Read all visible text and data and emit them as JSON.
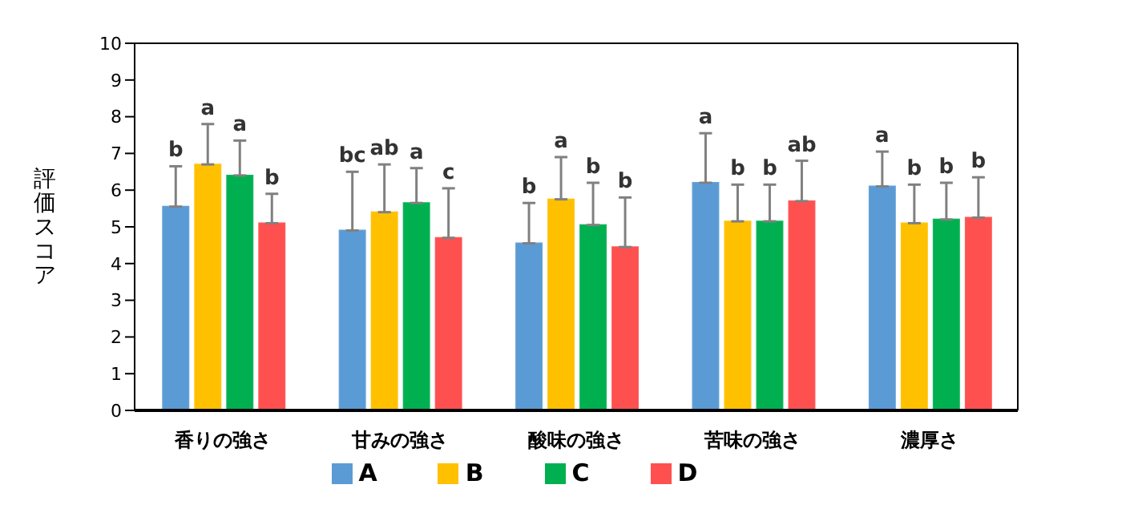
{
  "chart_data": {
    "type": "bar",
    "ylabel": "評価スコア",
    "categories": [
      "香りの強さ",
      "甘みの強さ",
      "酸味の強さ",
      "苦味の強さ",
      "濃厚さ"
    ],
    "series": [
      {
        "name": "A",
        "color": "#5b9bd5",
        "values": [
          5.55,
          4.9,
          4.55,
          6.2,
          6.1
        ],
        "errors": [
          [
            5.55,
            6.65
          ],
          [
            4.9,
            6.5
          ],
          [
            4.55,
            5.65
          ],
          [
            6.2,
            7.55
          ],
          [
            6.1,
            7.05
          ]
        ],
        "value_labels": [
          "b",
          "bc",
          "b",
          "a",
          "a"
        ]
      },
      {
        "name": "B",
        "color": "#ffc000",
        "values": [
          6.7,
          5.4,
          5.75,
          5.15,
          5.1
        ],
        "errors": [
          [
            6.7,
            7.8
          ],
          [
            5.4,
            6.7
          ],
          [
            5.75,
            6.9
          ],
          [
            5.15,
            6.15
          ],
          [
            5.1,
            6.15
          ]
        ],
        "value_labels": [
          "a",
          "ab",
          "a",
          "b",
          "b"
        ]
      },
      {
        "name": "C",
        "color": "#00b050",
        "values": [
          6.4,
          5.65,
          5.05,
          5.15,
          5.2
        ],
        "errors": [
          [
            6.4,
            7.35
          ],
          [
            5.65,
            6.6
          ],
          [
            5.05,
            6.2
          ],
          [
            5.15,
            6.15
          ],
          [
            5.2,
            6.2
          ]
        ],
        "value_labels": [
          "a",
          "a",
          "b",
          "b",
          "b"
        ]
      },
      {
        "name": "D",
        "color": "#ff5050",
        "values": [
          5.1,
          4.7,
          4.45,
          5.7,
          5.25
        ],
        "errors": [
          [
            5.1,
            5.9
          ],
          [
            4.7,
            6.05
          ],
          [
            4.45,
            5.8
          ],
          [
            5.7,
            6.8
          ],
          [
            5.25,
            6.35
          ]
        ],
        "value_labels": [
          "b",
          "c",
          "b",
          "ab",
          "b"
        ]
      }
    ],
    "ylim": [
      0,
      10
    ],
    "yticks": [
      0,
      1,
      2,
      3,
      4,
      5,
      6,
      7,
      8,
      9,
      10
    ],
    "grid": false,
    "legend": "bottom"
  }
}
